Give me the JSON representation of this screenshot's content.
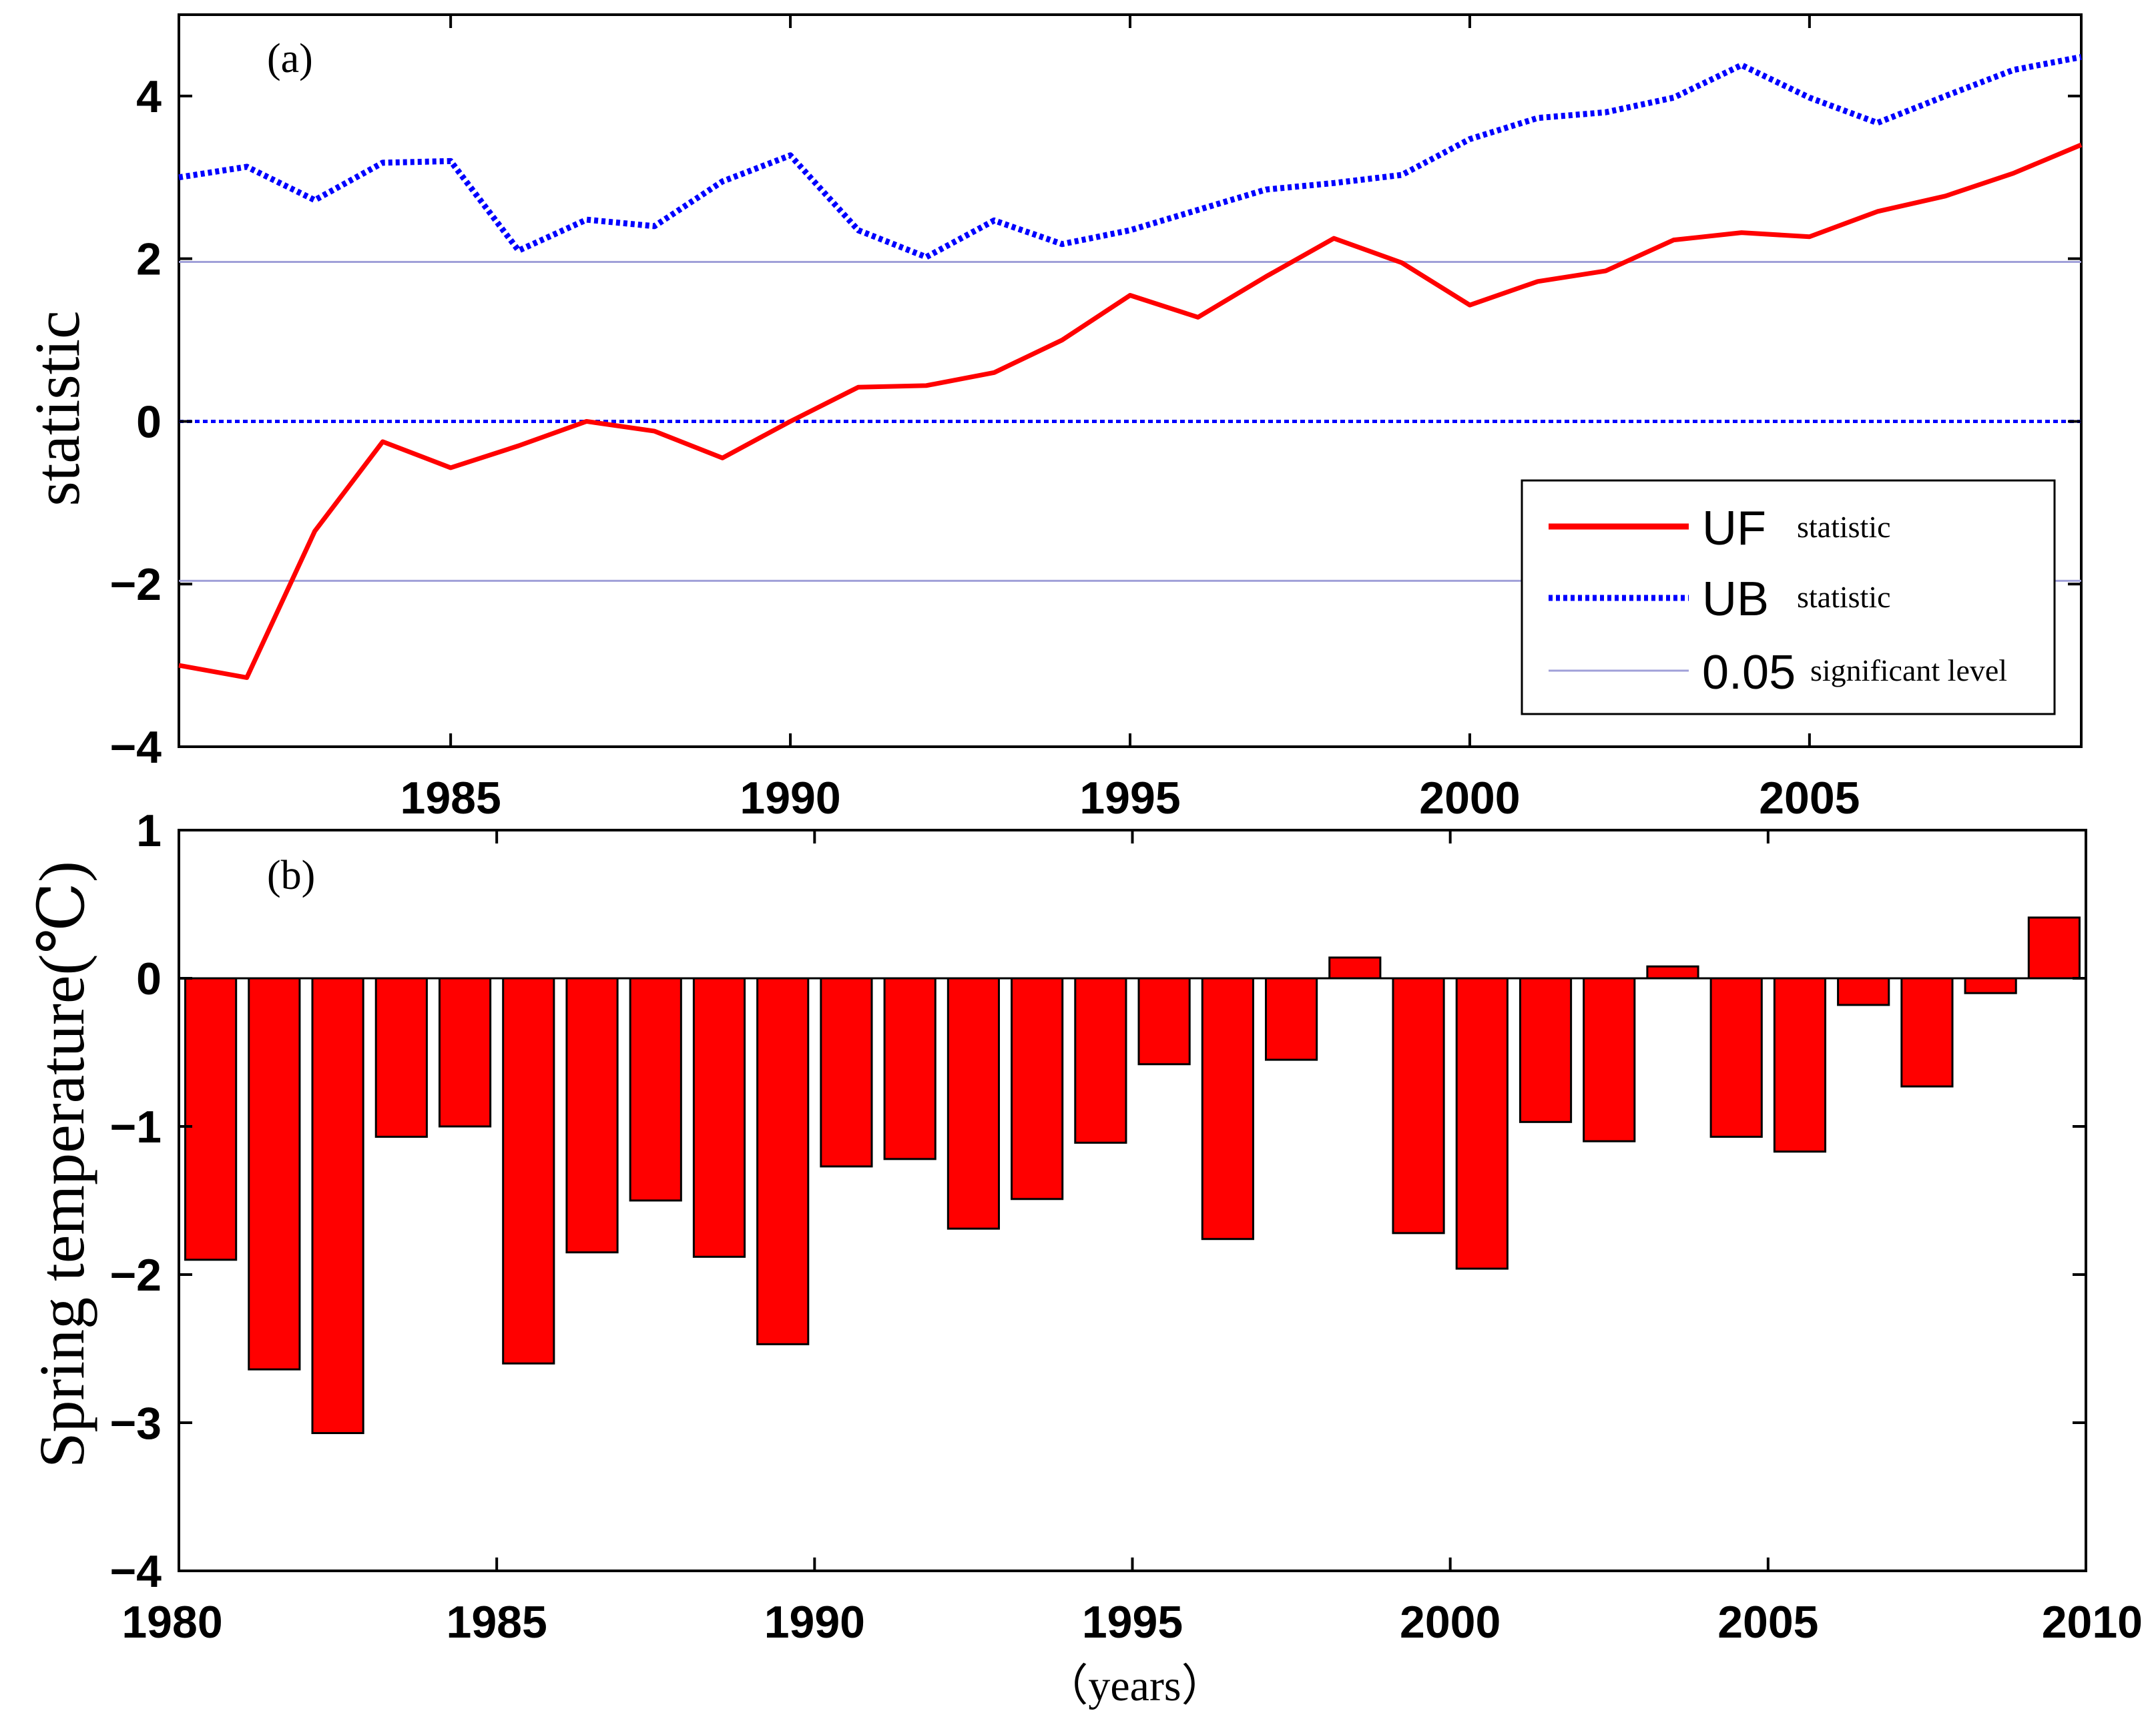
{
  "chart_data": [
    {
      "type": "line",
      "panel_label": "(a)",
      "ylabel": "statistic",
      "xlim": [
        1981,
        2009
      ],
      "ylim": [
        -4,
        5
      ],
      "yticks": [
        -4,
        -2,
        0,
        2,
        4
      ],
      "xticks": [
        1985,
        1990,
        1995,
        2000,
        2005
      ],
      "x": [
        1981,
        1982,
        1983,
        1984,
        1985,
        1986,
        1987,
        1988,
        1989,
        1990,
        1991,
        1992,
        1993,
        1994,
        1995,
        1996,
        1997,
        1998,
        1999,
        2000,
        2001,
        2002,
        2003,
        2004,
        2005,
        2006,
        2007,
        2008,
        2009
      ],
      "series": [
        {
          "name": "UF",
          "legend_suffix": "statistic",
          "color": "#ff0000",
          "style": "solid",
          "values": [
            -3.0,
            -3.15,
            -1.35,
            -0.25,
            -0.57,
            -0.3,
            0.0,
            -0.12,
            -0.45,
            0.0,
            0.42,
            0.44,
            0.6,
            1.0,
            1.55,
            1.28,
            1.78,
            2.25,
            1.95,
            1.43,
            1.72,
            1.85,
            2.23,
            2.32,
            2.27,
            2.58,
            2.77,
            3.05,
            3.4
          ]
        },
        {
          "name": "UB",
          "legend_suffix": "statistic",
          "color": "#0000ff",
          "style": "dotted",
          "values": [
            3.0,
            3.13,
            2.72,
            3.18,
            3.2,
            2.1,
            2.48,
            2.4,
            2.95,
            3.27,
            2.35,
            2.02,
            2.47,
            2.18,
            2.35,
            2.6,
            2.85,
            2.93,
            3.03,
            3.47,
            3.73,
            3.8,
            3.98,
            4.38,
            3.98,
            3.67,
            4.0,
            4.32,
            4.48
          ]
        }
      ],
      "reference_lines": [
        {
          "name": "0.05",
          "legend_suffix": "significant level",
          "values": [
            1.96,
            -1.96
          ],
          "color": "#a0a0d8"
        },
        {
          "name": "zero",
          "values": [
            0
          ],
          "color": "#0000ff"
        }
      ]
    },
    {
      "type": "bar",
      "panel_label": "(b)",
      "ylabel": "Spring temperature(℃)",
      "xlabel": "（years）",
      "xlim": [
        1980,
        2010
      ],
      "ylim": [
        -4,
        1
      ],
      "yticks": [
        -4,
        -3,
        -2,
        -1,
        0,
        1
      ],
      "xticks": [
        1980,
        1985,
        1990,
        1995,
        2000,
        2005,
        2010
      ],
      "bar_color": "#ff0000",
      "categories": [
        1981,
        1982,
        1983,
        1984,
        1985,
        1986,
        1987,
        1988,
        1989,
        1990,
        1991,
        1992,
        1993,
        1994,
        1995,
        1996,
        1997,
        1998,
        1999,
        2000,
        2001,
        2002,
        2003,
        2004,
        2005,
        2006,
        2007,
        2008,
        2009,
        2010
      ],
      "values": [
        -1.9,
        -2.64,
        -3.07,
        -1.07,
        -1.0,
        -2.6,
        -1.85,
        -1.5,
        -1.88,
        -2.47,
        -1.27,
        -1.22,
        -1.69,
        -1.49,
        -1.11,
        -0.58,
        -1.76,
        -0.55,
        0.14,
        -1.72,
        -1.96,
        -0.97,
        -1.1,
        0.08,
        -1.07,
        -1.17,
        -0.18,
        -0.73,
        -0.1,
        0.41
      ]
    }
  ]
}
